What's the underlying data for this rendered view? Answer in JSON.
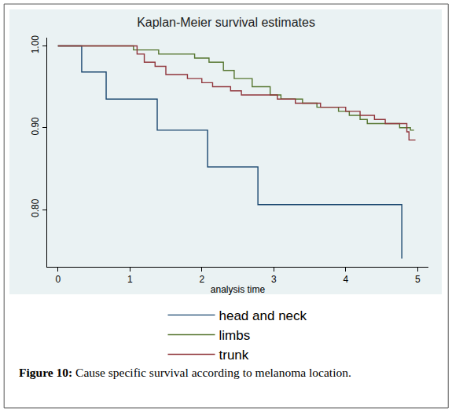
{
  "chart_data": {
    "type": "line",
    "line_style": "step",
    "title": "Kaplan-Meier survival estimates",
    "x_label": "analysis time",
    "xlim": [
      -0.15,
      5.15
    ],
    "xticks": [
      0,
      1,
      2,
      3,
      4,
      5
    ],
    "ylim": [
      0.73,
      1.01
    ],
    "yticks": [
      {
        "value": 0.8,
        "label": "0.80"
      },
      {
        "value": 0.9,
        "label": "0.90"
      },
      {
        "value": 1.0,
        "label": "1.00"
      }
    ],
    "grid": false,
    "legend": "bottom",
    "series": [
      {
        "name": "head and neck",
        "color": "#1a476f",
        "x": [
          0,
          0.33,
          0.67,
          1.38,
          2.08,
          2.78,
          4.78
        ],
        "values": [
          1.0,
          0.968,
          0.935,
          0.897,
          0.852,
          0.806,
          0.74
        ]
      },
      {
        "name": "limbs",
        "color": "#55752f",
        "x": [
          0,
          1.05,
          1.4,
          1.9,
          2.1,
          2.3,
          2.45,
          2.7,
          2.95,
          3.1,
          3.4,
          3.6,
          3.9,
          4.05,
          4.2,
          4.3,
          4.75,
          4.9,
          4.95
        ],
        "values": [
          1.0,
          0.995,
          0.99,
          0.985,
          0.98,
          0.97,
          0.96,
          0.95,
          0.94,
          0.935,
          0.93,
          0.925,
          0.92,
          0.915,
          0.91,
          0.905,
          0.9,
          0.897,
          0.897
        ]
      },
      {
        "name": "trunk",
        "color": "#90353b",
        "x": [
          0,
          1.1,
          1.2,
          1.35,
          1.5,
          1.8,
          2.0,
          2.15,
          2.4,
          2.55,
          3.05,
          3.3,
          3.65,
          4.0,
          4.2,
          4.4,
          4.55,
          4.85,
          4.88,
          4.97
        ],
        "values": [
          1.0,
          0.99,
          0.98,
          0.975,
          0.965,
          0.96,
          0.955,
          0.95,
          0.945,
          0.94,
          0.935,
          0.93,
          0.925,
          0.92,
          0.915,
          0.91,
          0.905,
          0.895,
          0.885,
          0.885
        ]
      }
    ],
    "annotations": [
      {
        "label": "Figure 10:",
        "text": "Cause specific survival according to melanoma location."
      }
    ]
  }
}
